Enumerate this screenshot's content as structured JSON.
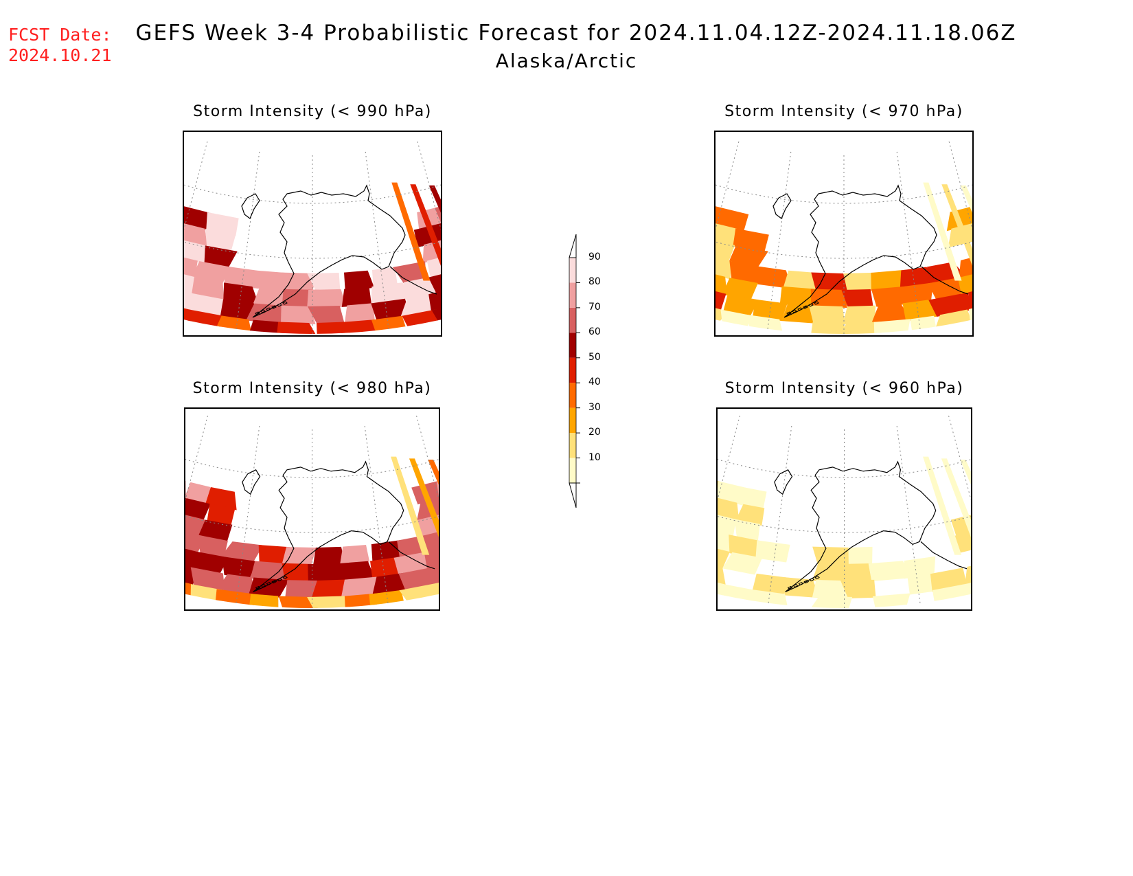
{
  "header": {
    "fcst_label": "FCST Date:",
    "fcst_date": "2024.10.21",
    "title": "GEFS Week 3-4 Probabilistic Forecast for 2024.11.04.12Z-2024.11.18.06Z",
    "subtitle": "Alaska/Arctic"
  },
  "panels": [
    {
      "title": "Storm Intensity (< 990 hPa)",
      "intensity": "high"
    },
    {
      "title": "Storm Intensity (< 970 hPa)",
      "intensity": "medium"
    },
    {
      "title": "Storm Intensity (< 980 hPa)",
      "intensity": "mediumhigh"
    },
    {
      "title": "Storm Intensity (< 960 hPa)",
      "intensity": "low"
    }
  ],
  "colorbar": {
    "levels": [
      10,
      20,
      30,
      40,
      50,
      60,
      70,
      80,
      90
    ],
    "colors": [
      "#fffbc8",
      "#ffe17a",
      "#ffa500",
      "#ff6a00",
      "#e01e00",
      "#a00000",
      "#d86060",
      "#f0a0a0",
      "#fbdcdc"
    ],
    "tick_labels": [
      "10",
      "20",
      "30",
      "40",
      "50",
      "60",
      "70",
      "80",
      "90"
    ]
  }
}
